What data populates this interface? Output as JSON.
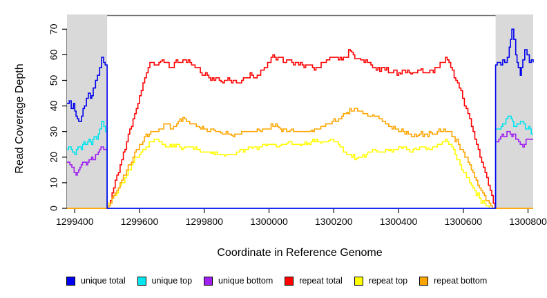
{
  "chart_data": {
    "type": "line",
    "title": "",
    "xlabel": "Coordinate in Reference Genome",
    "ylabel": "Read Coverage Depth",
    "xlim": [
      1299376,
      1300816
    ],
    "ylim": [
      0,
      75
    ],
    "grid": false,
    "legend_position": "bottom",
    "xticks": [
      1299400,
      1299600,
      1299800,
      1300000,
      1300200,
      1300400,
      1300600,
      1300800
    ],
    "yticks": [
      0,
      10,
      20,
      30,
      40,
      50,
      60,
      70
    ],
    "flank_color": "#d9d9d9",
    "box_color": "#707070",
    "shaded_regions": [
      {
        "x0": 1299376,
        "x1": 1299500,
        "label": "left-flank"
      },
      {
        "x0": 1300700,
        "x1": 1300816,
        "label": "right-flank"
      }
    ],
    "draw_order": [
      3,
      4,
      5,
      2,
      1,
      0
    ],
    "series": [
      {
        "name": "unique total",
        "color": "#0000ee",
        "points": [
          [
            1299376,
            41
          ],
          [
            1299383,
            42
          ],
          [
            1299389,
            39
          ],
          [
            1299396,
            41
          ],
          [
            1299404,
            36
          ],
          [
            1299412,
            34
          ],
          [
            1299421,
            36
          ],
          [
            1299430,
            40
          ],
          [
            1299436,
            43
          ],
          [
            1299442,
            45
          ],
          [
            1299448,
            43
          ],
          [
            1299457,
            47
          ],
          [
            1299464,
            50
          ],
          [
            1299470,
            52
          ],
          [
            1299477,
            55
          ],
          [
            1299483,
            59
          ],
          [
            1299489,
            57
          ],
          [
            1299494,
            56
          ],
          [
            1299500,
            56
          ],
          [
            1299500,
            0
          ],
          [
            1300700,
            0
          ],
          [
            1300700,
            56
          ],
          [
            1300710,
            57
          ],
          [
            1300716,
            56
          ],
          [
            1300722,
            58
          ],
          [
            1300728,
            57
          ],
          [
            1300736,
            59
          ],
          [
            1300742,
            63
          ],
          [
            1300750,
            70
          ],
          [
            1300756,
            66
          ],
          [
            1300762,
            60
          ],
          [
            1300770,
            55
          ],
          [
            1300776,
            52
          ],
          [
            1300784,
            58
          ],
          [
            1300790,
            62
          ],
          [
            1300797,
            60
          ],
          [
            1300804,
            57
          ],
          [
            1300810,
            58
          ],
          [
            1300816,
            57
          ]
        ]
      },
      {
        "name": "unique top",
        "color": "#00e5ee",
        "points": [
          [
            1299376,
            23
          ],
          [
            1299385,
            24
          ],
          [
            1299393,
            22
          ],
          [
            1299400,
            21
          ],
          [
            1299410,
            24
          ],
          [
            1299420,
            23
          ],
          [
            1299428,
            26
          ],
          [
            1299436,
            25
          ],
          [
            1299444,
            27
          ],
          [
            1299452,
            25
          ],
          [
            1299460,
            28
          ],
          [
            1299468,
            27
          ],
          [
            1299477,
            31
          ],
          [
            1299483,
            34
          ],
          [
            1299490,
            32
          ],
          [
            1299495,
            30
          ],
          [
            1299500,
            30
          ],
          [
            1299500,
            0
          ],
          [
            1300700,
            0
          ],
          [
            1300700,
            31
          ],
          [
            1300712,
            31
          ],
          [
            1300722,
            33
          ],
          [
            1300732,
            35
          ],
          [
            1300744,
            36
          ],
          [
            1300752,
            34
          ],
          [
            1300760,
            32
          ],
          [
            1300772,
            33
          ],
          [
            1300782,
            34
          ],
          [
            1300792,
            31
          ],
          [
            1300802,
            32
          ],
          [
            1300810,
            29
          ],
          [
            1300816,
            29
          ]
        ]
      },
      {
        "name": "unique bottom",
        "color": "#a020f0",
        "points": [
          [
            1299376,
            18
          ],
          [
            1299385,
            17
          ],
          [
            1299391,
            16
          ],
          [
            1299398,
            14
          ],
          [
            1299404,
            13
          ],
          [
            1299412,
            15
          ],
          [
            1299420,
            17
          ],
          [
            1299428,
            18
          ],
          [
            1299436,
            17
          ],
          [
            1299444,
            19
          ],
          [
            1299452,
            20
          ],
          [
            1299460,
            19
          ],
          [
            1299468,
            21
          ],
          [
            1299477,
            23
          ],
          [
            1299485,
            24
          ],
          [
            1299493,
            23
          ],
          [
            1299500,
            24
          ],
          [
            1299500,
            0
          ],
          [
            1300700,
            0
          ],
          [
            1300700,
            26
          ],
          [
            1300710,
            27
          ],
          [
            1300720,
            29
          ],
          [
            1300730,
            28
          ],
          [
            1300740,
            30
          ],
          [
            1300750,
            28
          ],
          [
            1300758,
            29
          ],
          [
            1300766,
            27
          ],
          [
            1300776,
            25
          ],
          [
            1300784,
            24
          ],
          [
            1300794,
            27
          ],
          [
            1300806,
            27
          ],
          [
            1300816,
            27
          ]
        ]
      },
      {
        "name": "repeat total",
        "color": "#ff0000",
        "points": [
          [
            1299376,
            0
          ],
          [
            1299500,
            0
          ],
          [
            1299520,
            8
          ],
          [
            1299540,
            17
          ],
          [
            1299560,
            26
          ],
          [
            1299580,
            35
          ],
          [
            1299600,
            44
          ],
          [
            1299616,
            51
          ],
          [
            1299632,
            57
          ],
          [
            1299650,
            56
          ],
          [
            1299665,
            57.5
          ],
          [
            1299681,
            57
          ],
          [
            1299702,
            55
          ],
          [
            1299713,
            58
          ],
          [
            1299724,
            57
          ],
          [
            1299734,
            58
          ],
          [
            1299745,
            57
          ],
          [
            1299766,
            56
          ],
          [
            1299788,
            53
          ],
          [
            1299809,
            52
          ],
          [
            1299830,
            50
          ],
          [
            1299841,
            51
          ],
          [
            1299852,
            49.5
          ],
          [
            1299873,
            51
          ],
          [
            1299884,
            49
          ],
          [
            1299894,
            50
          ],
          [
            1299905,
            49
          ],
          [
            1299926,
            51
          ],
          [
            1299947,
            52
          ],
          [
            1299958,
            51
          ],
          [
            1299980,
            54
          ],
          [
            1300001,
            57
          ],
          [
            1300012,
            60
          ],
          [
            1300022,
            58
          ],
          [
            1300033,
            59
          ],
          [
            1300044,
            57
          ],
          [
            1300065,
            58
          ],
          [
            1300076,
            56
          ],
          [
            1300097,
            57
          ],
          [
            1300108,
            55
          ],
          [
            1300129,
            56
          ],
          [
            1300140,
            54
          ],
          [
            1300150,
            55
          ],
          [
            1300172,
            57
          ],
          [
            1300193,
            59
          ],
          [
            1300214,
            58
          ],
          [
            1300235,
            59
          ],
          [
            1300251,
            61.5
          ],
          [
            1300265,
            58.5
          ],
          [
            1300278,
            58.5
          ],
          [
            1300299,
            58
          ],
          [
            1300320,
            55
          ],
          [
            1300342,
            53.5
          ],
          [
            1300353,
            55
          ],
          [
            1300374,
            53
          ],
          [
            1300385,
            54
          ],
          [
            1300406,
            52.5
          ],
          [
            1300417,
            54
          ],
          [
            1300438,
            52.5
          ],
          [
            1300449,
            53
          ],
          [
            1300470,
            54.5
          ],
          [
            1300481,
            53
          ],
          [
            1300502,
            54
          ],
          [
            1300523,
            55
          ],
          [
            1300534,
            57
          ],
          [
            1300545,
            59
          ],
          [
            1300556,
            57
          ],
          [
            1300577,
            50
          ],
          [
            1300598,
            43
          ],
          [
            1300620,
            35
          ],
          [
            1300641,
            25
          ],
          [
            1300662,
            16
          ],
          [
            1300683,
            7
          ],
          [
            1300698,
            0
          ],
          [
            1300816,
            0
          ]
        ]
      },
      {
        "name": "repeat top",
        "color": "#ffff00",
        "points": [
          [
            1299376,
            0
          ],
          [
            1299500,
            0
          ],
          [
            1299530,
            6
          ],
          [
            1299560,
            13
          ],
          [
            1299590,
            20
          ],
          [
            1299620,
            24
          ],
          [
            1299650,
            27
          ],
          [
            1299670,
            25
          ],
          [
            1299690,
            24
          ],
          [
            1299713,
            25
          ],
          [
            1299735,
            23.5
          ],
          [
            1299756,
            24
          ],
          [
            1299777,
            23
          ],
          [
            1299798,
            22
          ],
          [
            1299820,
            21.5
          ],
          [
            1299841,
            21
          ],
          [
            1299862,
            20.5
          ],
          [
            1299884,
            21
          ],
          [
            1299905,
            22
          ],
          [
            1299926,
            23
          ],
          [
            1299947,
            23.5
          ],
          [
            1299969,
            24
          ],
          [
            1299990,
            24.5
          ],
          [
            1300012,
            25
          ],
          [
            1300033,
            24.5
          ],
          [
            1300055,
            25.5
          ],
          [
            1300076,
            25
          ],
          [
            1300097,
            24.5
          ],
          [
            1300120,
            25.5
          ],
          [
            1300140,
            26
          ],
          [
            1300160,
            25.5
          ],
          [
            1300185,
            26.5
          ],
          [
            1300200,
            26
          ],
          [
            1300214,
            25
          ],
          [
            1300235,
            22
          ],
          [
            1300255,
            20
          ],
          [
            1300270,
            19.5
          ],
          [
            1300290,
            21
          ],
          [
            1300310,
            22
          ],
          [
            1300330,
            22.5
          ],
          [
            1300350,
            22
          ],
          [
            1300370,
            22.5
          ],
          [
            1300390,
            23
          ],
          [
            1300410,
            23.5
          ],
          [
            1300430,
            23
          ],
          [
            1300450,
            23.5
          ],
          [
            1300470,
            24
          ],
          [
            1300490,
            23.5
          ],
          [
            1300510,
            24
          ],
          [
            1300530,
            25
          ],
          [
            1300545,
            27
          ],
          [
            1300560,
            25
          ],
          [
            1300575,
            21
          ],
          [
            1300590,
            17
          ],
          [
            1300610,
            12
          ],
          [
            1300630,
            8
          ],
          [
            1300650,
            4
          ],
          [
            1300670,
            1
          ],
          [
            1300685,
            0
          ],
          [
            1300816,
            0
          ]
        ]
      },
      {
        "name": "repeat bottom",
        "color": "#ffa500",
        "points": [
          [
            1299376,
            0
          ],
          [
            1299500,
            0
          ],
          [
            1299530,
            7
          ],
          [
            1299560,
            15
          ],
          [
            1299590,
            23
          ],
          [
            1299615,
            28
          ],
          [
            1299640,
            30
          ],
          [
            1299660,
            31
          ],
          [
            1299680,
            33
          ],
          [
            1299700,
            31
          ],
          [
            1299715,
            33
          ],
          [
            1299734,
            35.5
          ],
          [
            1299750,
            34
          ],
          [
            1299766,
            33
          ],
          [
            1299785,
            31.5
          ],
          [
            1299798,
            31
          ],
          [
            1299815,
            30
          ],
          [
            1299830,
            30.5
          ],
          [
            1299850,
            29.5
          ],
          [
            1299862,
            29
          ],
          [
            1299884,
            28.5
          ],
          [
            1299905,
            29
          ],
          [
            1299926,
            30
          ],
          [
            1299947,
            30
          ],
          [
            1299969,
            30.5
          ],
          [
            1299990,
            31
          ],
          [
            1300012,
            32
          ],
          [
            1300030,
            31.5
          ],
          [
            1300044,
            31
          ],
          [
            1300065,
            30.5
          ],
          [
            1300087,
            30
          ],
          [
            1300108,
            30
          ],
          [
            1300130,
            30.5
          ],
          [
            1300150,
            31
          ],
          [
            1300170,
            32
          ],
          [
            1300190,
            33
          ],
          [
            1300215,
            35
          ],
          [
            1300240,
            37.5
          ],
          [
            1300268,
            39
          ],
          [
            1300285,
            38
          ],
          [
            1300300,
            37
          ],
          [
            1300320,
            36.5
          ],
          [
            1300335,
            36
          ],
          [
            1300355,
            34
          ],
          [
            1300375,
            32
          ],
          [
            1300395,
            31
          ],
          [
            1300415,
            30
          ],
          [
            1300435,
            29
          ],
          [
            1300460,
            28.5
          ],
          [
            1300480,
            29
          ],
          [
            1300500,
            29.5
          ],
          [
            1300520,
            30
          ],
          [
            1300540,
            31
          ],
          [
            1300555,
            30
          ],
          [
            1300570,
            28
          ],
          [
            1300585,
            25
          ],
          [
            1300600,
            22
          ],
          [
            1300620,
            17
          ],
          [
            1300640,
            11
          ],
          [
            1300660,
            6
          ],
          [
            1300680,
            2
          ],
          [
            1300695,
            0
          ],
          [
            1300816,
            0
          ]
        ]
      }
    ]
  }
}
